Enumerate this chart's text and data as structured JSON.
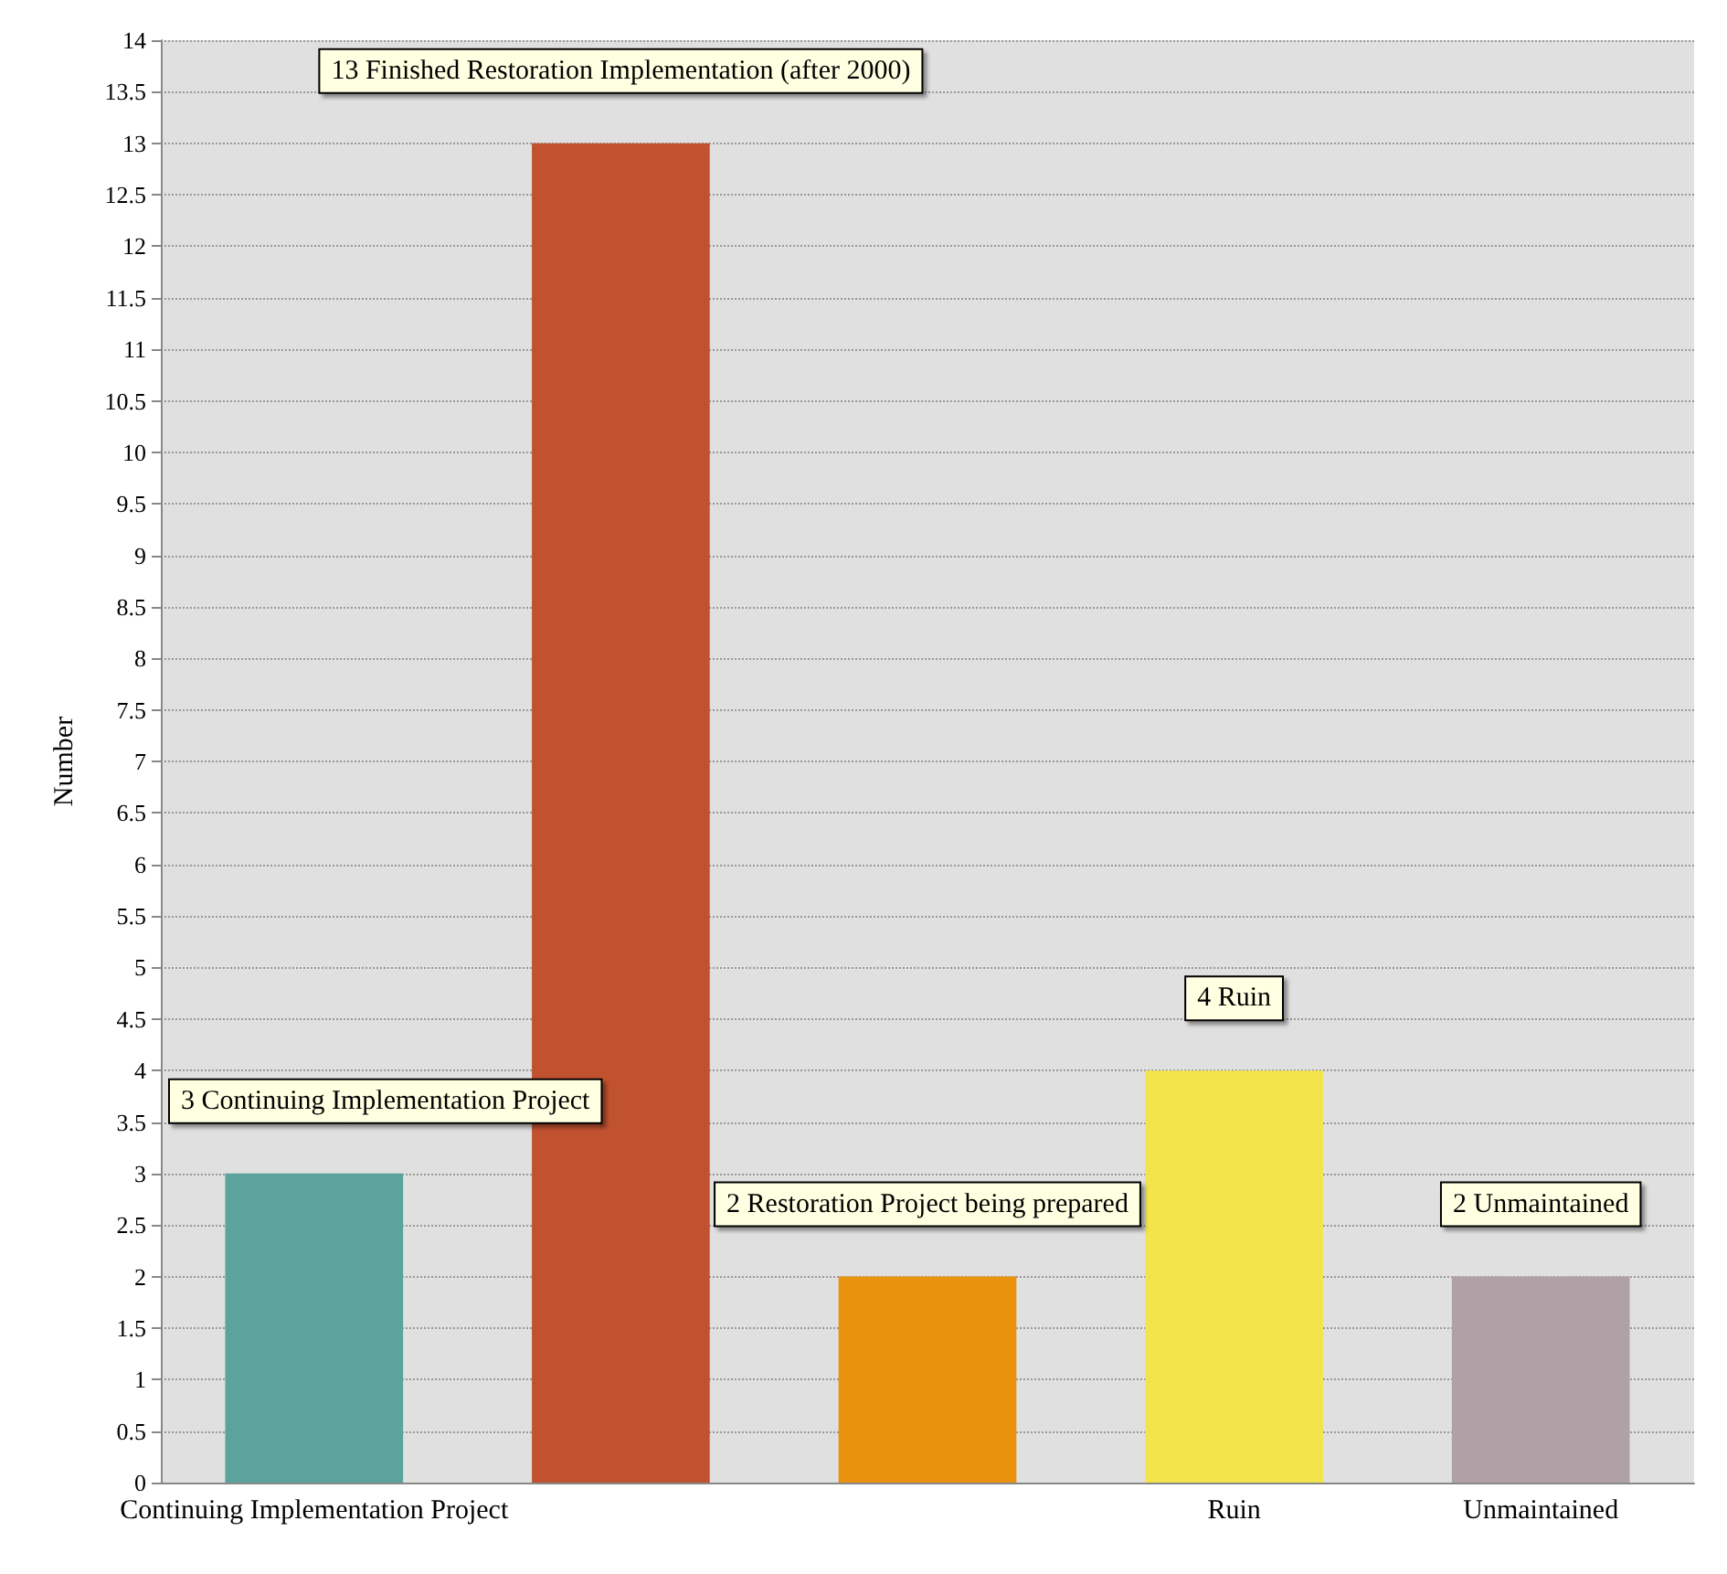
{
  "chart_data": {
    "type": "bar",
    "ylabel": "Number",
    "categories": [
      "Continuing Implementation Project",
      null,
      null,
      "Ruin",
      "Unmaintained"
    ],
    "values": [
      3,
      13,
      2,
      4,
      2
    ],
    "colors": [
      "#5ba39c",
      "#c1522f",
      "#e8920e",
      "#f4e44c",
      "#b0a1a6"
    ],
    "value_labels": [
      "3 Continuing Implementation Project",
      "13 Finished Restoration Implementation (after 2000)",
      "2 Restoration Project being prepared",
      "4 Ruin",
      "2 Unmaintained"
    ],
    "ylim": [
      0,
      14
    ],
    "yticks": [
      0,
      0.5,
      1,
      1.5,
      2,
      2.5,
      3,
      3.5,
      4,
      4.5,
      5,
      5.5,
      6,
      6.5,
      7,
      7.5,
      8,
      8.5,
      9,
      9.5,
      10,
      10.5,
      11,
      11.5,
      12,
      12.5,
      13,
      13.5,
      14
    ],
    "grid": "y"
  }
}
